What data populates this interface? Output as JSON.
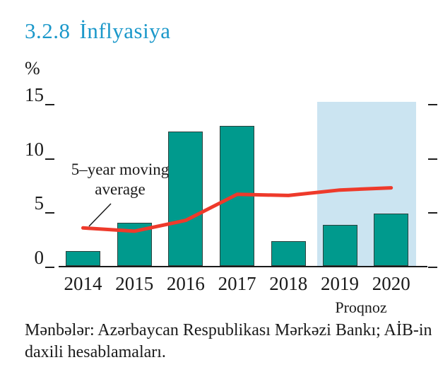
{
  "page": {
    "section_number": "3.2.8",
    "section_title": "İnflyasiya",
    "source_note": "Mənbələr: Azərbaycan Respublikası Mərkəzi Bankı; AİB-in daxili hesablamaları."
  },
  "colors": {
    "title": "#1b98ca",
    "bar": "#009a8d",
    "bar_border": "#2c413d",
    "line": "#ee3a2b",
    "forecast_bg": "#cbe4f1",
    "axis_text": "#1a1a1a"
  },
  "chart_data": {
    "type": "bar",
    "title": "3.2.8 İnflyasiya",
    "xlabel": "",
    "ylabel": "%",
    "categories": [
      "2014",
      "2015",
      "2016",
      "2017",
      "2018",
      "2019",
      "2020"
    ],
    "series": [
      {
        "name": "İnflyasiya",
        "type": "bar",
        "values": [
          1.4,
          4.0,
          12.4,
          12.9,
          2.3,
          3.8,
          4.8
        ],
        "color": "#009a8d"
      },
      {
        "name": "5–year moving average",
        "type": "line",
        "values": [
          3.5,
          3.2,
          4.2,
          6.6,
          6.5,
          7.0,
          7.2
        ],
        "color": "#ee3a2b"
      }
    ],
    "ylim": [
      0,
      15
    ],
    "yticks": [
      0,
      5,
      10,
      15
    ],
    "grid": false,
    "legend_position": "none",
    "annotation": {
      "line1": "5–year moving",
      "line2": "average",
      "points_to": "moving-average line at 2014"
    },
    "forecast": {
      "label": "Proqnoz",
      "categories": [
        "2019",
        "2020"
      ],
      "bg_color": "#cbe4f1"
    }
  }
}
